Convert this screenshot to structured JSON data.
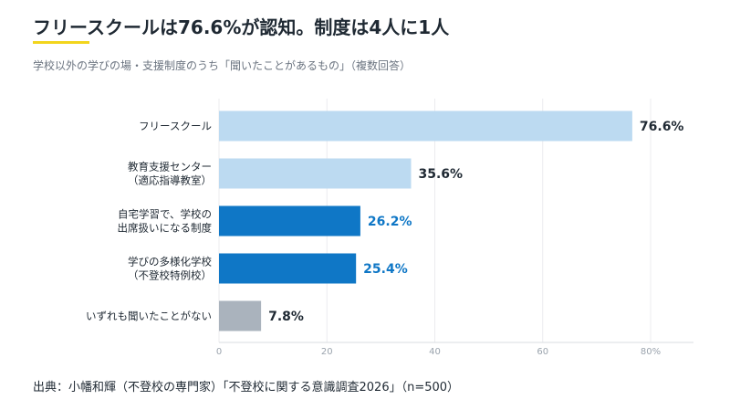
{
  "header": {
    "title": "フリースクールは76.6%が認知。制度は4人に1人",
    "subtitle": "学校以外の学びの場・支援制度のうち「聞いたことがあるもの」（複数回答）"
  },
  "footer": {
    "source": "出典：小幡和輝（不登校の専門家）「不登校に関する意識調査2026」（n=500）"
  },
  "colors": {
    "light_blue": "#bcdaf1",
    "dark_blue": "#0f77c6",
    "gray": "#aab3bd",
    "label_dark": "#1f2933",
    "label_blue": "#0f77c6",
    "accent_underline": "#f2d51d"
  },
  "chart_data": {
    "type": "bar",
    "orientation": "horizontal",
    "categories": [
      [
        "フリースクール"
      ],
      [
        "教育支援センター",
        "（適応指導教室）"
      ],
      [
        "自宅学習で、学校の",
        "出席扱いになる制度"
      ],
      [
        "学びの多様化学校",
        "（不登校特例校）"
      ],
      [
        "いずれも聞いたことがない"
      ]
    ],
    "values": [
      76.6,
      35.6,
      26.2,
      25.4,
      7.8
    ],
    "value_labels": [
      "76.6%",
      "35.6%",
      "26.2%",
      "25.4%",
      "7.8%"
    ],
    "bar_colors": [
      "light_blue",
      "light_blue",
      "dark_blue",
      "dark_blue",
      "gray"
    ],
    "label_colors": [
      "label_dark",
      "label_dark",
      "label_blue",
      "label_blue",
      "label_dark"
    ],
    "xlim": [
      0,
      80
    ],
    "xticks": [
      0,
      20,
      40,
      60,
      80
    ],
    "xtick_labels": [
      "0",
      "20",
      "40",
      "60",
      "80%"
    ],
    "grid": true,
    "xlabel": "",
    "ylabel": ""
  }
}
